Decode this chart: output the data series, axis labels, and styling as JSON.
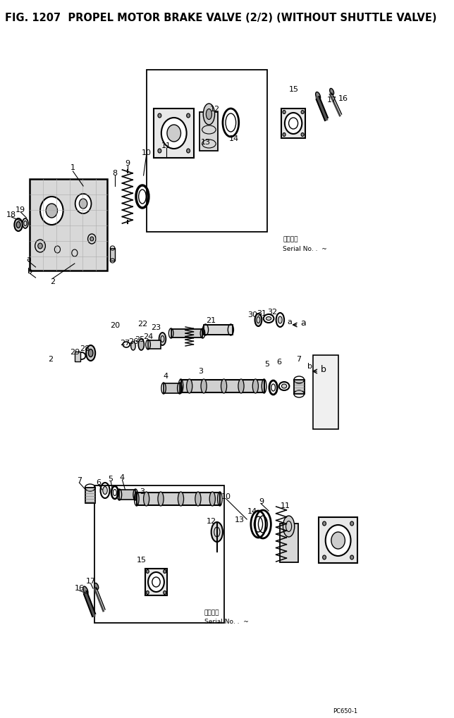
{
  "title": "FIG. 1207  PROPEL MOTOR BRAKE VALVE (2/2) (WITHOUT SHUTTLE VALVE)",
  "title_fontsize": 10.5,
  "bg_color": "#ffffff",
  "fig_width": 6.44,
  "fig_height": 10.2,
  "serial_text1a": "適用号機",
  "serial_text1b": "Serial No. .  ~",
  "serial_text2a": "適用号機",
  "serial_text2b": "Serial No. .  ~"
}
